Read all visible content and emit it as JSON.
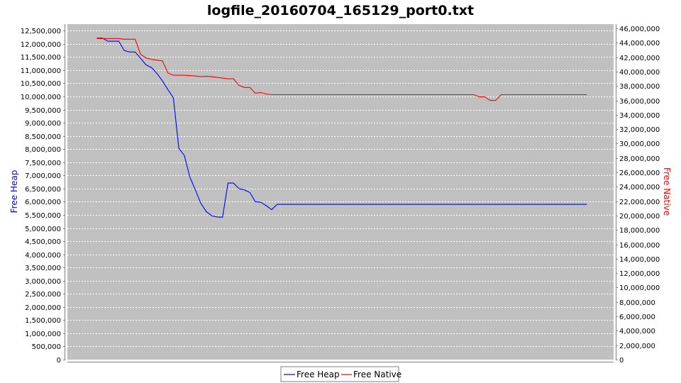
{
  "chart_data": {
    "type": "line",
    "title": "logfile_20160704_165129_port0.txt",
    "ylabel_left": "Free Heap",
    "ylabel_right": "Free Native",
    "xlabel": "",
    "ylim_left": [
      0,
      12750000
    ],
    "ylim_right": [
      0,
      46600000
    ],
    "yticks_left": [
      0,
      500000,
      1000000,
      1500000,
      2000000,
      2500000,
      3000000,
      3500000,
      4000000,
      4500000,
      5000000,
      5500000,
      6000000,
      6500000,
      7000000,
      7500000,
      8000000,
      8500000,
      9000000,
      9500000,
      10000000,
      10500000,
      11000000,
      11500000,
      12000000,
      12500000
    ],
    "yticks_right": [
      0,
      2000000,
      4000000,
      6000000,
      8000000,
      10000000,
      12000000,
      14000000,
      16000000,
      18000000,
      20000000,
      22000000,
      24000000,
      26000000,
      28000000,
      30000000,
      32000000,
      34000000,
      36000000,
      38000000,
      40000000,
      42000000,
      44000000,
      46000000
    ],
    "yticklabels_left": [
      "0",
      "500,000",
      "1,000,000",
      "1,500,000",
      "2,000,000",
      "2,500,000",
      "3,000,000",
      "3,500,000",
      "4,000,000",
      "4,500,000",
      "5,000,000",
      "5,500,000",
      "6,000,000",
      "6,500,000",
      "7,000,000",
      "7,500,000",
      "8,000,000",
      "8,500,000",
      "9,000,000",
      "9,500,000",
      "10,000,000",
      "10,500,000",
      "11,000,000",
      "11,500,000",
      "12,000,000",
      "12,500,000"
    ],
    "yticklabels_right": [
      "0",
      "2,000,000",
      "4,000,000",
      "6,000,000",
      "8,000,000",
      "10,000,000",
      "12,000,000",
      "14,000,000",
      "16,000,000",
      "18,000,000",
      "20,000,000",
      "22,000,000",
      "24,000,000",
      "26,000,000",
      "28,000,000",
      "30,000,000",
      "32,000,000",
      "34,000,000",
      "36,000,000",
      "38,000,000",
      "40,000,000",
      "42,000,000",
      "44,000,000",
      "46,000,000"
    ],
    "xlim": [
      0,
      100
    ],
    "grid": true,
    "legend_placement": "bottom-center",
    "series": [
      {
        "name": "Free Heap",
        "axis": "left",
        "color": "#0000ff",
        "x": [
          5.4,
          6.4,
          7.4,
          8.4,
          9.4,
          10.4,
          11.4,
          12.4,
          13.4,
          14.4,
          15.4,
          16.4,
          17.4,
          18.4,
          19.4,
          20.4,
          21.4,
          22.4,
          23.4,
          24.4,
          25.4,
          26.4,
          27.4,
          28.4,
          29.4,
          30.4,
          31.4,
          32.4,
          33.4,
          34.4,
          35.4,
          36.4,
          37.4,
          38.4,
          39.4,
          40.4,
          95.1
        ],
        "y": [
          12220000,
          12220000,
          12100000,
          12100000,
          12100000,
          11750000,
          11690000,
          11690000,
          11450000,
          11200000,
          11100000,
          10870000,
          10590000,
          10260000,
          9950000,
          8030000,
          7760000,
          6950000,
          6460000,
          5950000,
          5630000,
          5470000,
          5420000,
          5410000,
          6710000,
          6710000,
          6500000,
          6450000,
          6350000,
          6000000,
          5980000,
          5850000,
          5700000,
          5900000,
          5900000,
          5900000,
          5900000
        ]
      },
      {
        "name": "Free Native",
        "axis": "right",
        "color": "#ff0000",
        "x": [
          5.4,
          6.4,
          7.4,
          8.4,
          9.4,
          10.4,
          11.4,
          12.4,
          13.4,
          14.4,
          15.4,
          16.4,
          17.4,
          18.4,
          19.4,
          20.4,
          21.4,
          22.4,
          23.4,
          24.4,
          25.4,
          26.4,
          27.4,
          28.4,
          29.4,
          30.4,
          31.4,
          32.4,
          33.4,
          34.4,
          35.4,
          36.4,
          37.4,
          38.4,
          39.4,
          40.4,
          74.4,
          75.4,
          76.4,
          77.4,
          78.4,
          79.4,
          95.1
        ],
        "y": [
          44600000,
          44600000,
          44600000,
          44600000,
          44600000,
          44500000,
          44500000,
          44500000,
          42400000,
          41900000,
          41700000,
          41600000,
          41500000,
          39800000,
          39500000,
          39500000,
          39500000,
          39450000,
          39400000,
          39300000,
          39350000,
          39300000,
          39200000,
          39100000,
          39000000,
          39000000,
          38100000,
          37800000,
          37800000,
          37000000,
          37100000,
          36900000,
          36800000,
          36800000,
          36800000,
          36800000,
          36800000,
          36500000,
          36500000,
          36000000,
          36000000,
          36800000,
          36800000
        ]
      }
    ]
  }
}
